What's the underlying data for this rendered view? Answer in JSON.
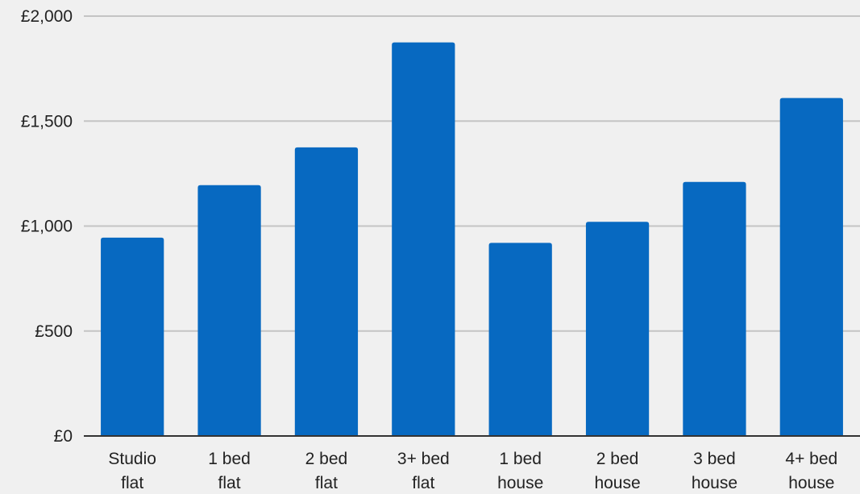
{
  "chart_data": {
    "type": "bar",
    "title": "",
    "xlabel": "",
    "ylabel": "",
    "categories": [
      [
        "Studio",
        "flat"
      ],
      [
        "1 bed",
        "flat"
      ],
      [
        "2 bed",
        "flat"
      ],
      [
        "3+ bed",
        "flat"
      ],
      [
        "1 bed",
        "house"
      ],
      [
        "2 bed",
        "house"
      ],
      [
        "3 bed",
        "house"
      ],
      [
        "4+ bed",
        "house"
      ]
    ],
    "values": [
      945,
      1195,
      1375,
      1875,
      920,
      1020,
      1210,
      1610
    ],
    "ylim": [
      0,
      2000
    ],
    "yticks": [
      0,
      500,
      1000,
      1500,
      2000
    ],
    "ytick_labels": [
      "£0",
      "£500",
      "£1,000",
      "£1,500",
      "£2,000"
    ],
    "grid": true,
    "legend": "none"
  },
  "colors": {
    "background": "#f0f0f0",
    "bar": "#0769c1",
    "gridline": "#c4c4c4",
    "axis": "#333333",
    "text": "#222222"
  }
}
